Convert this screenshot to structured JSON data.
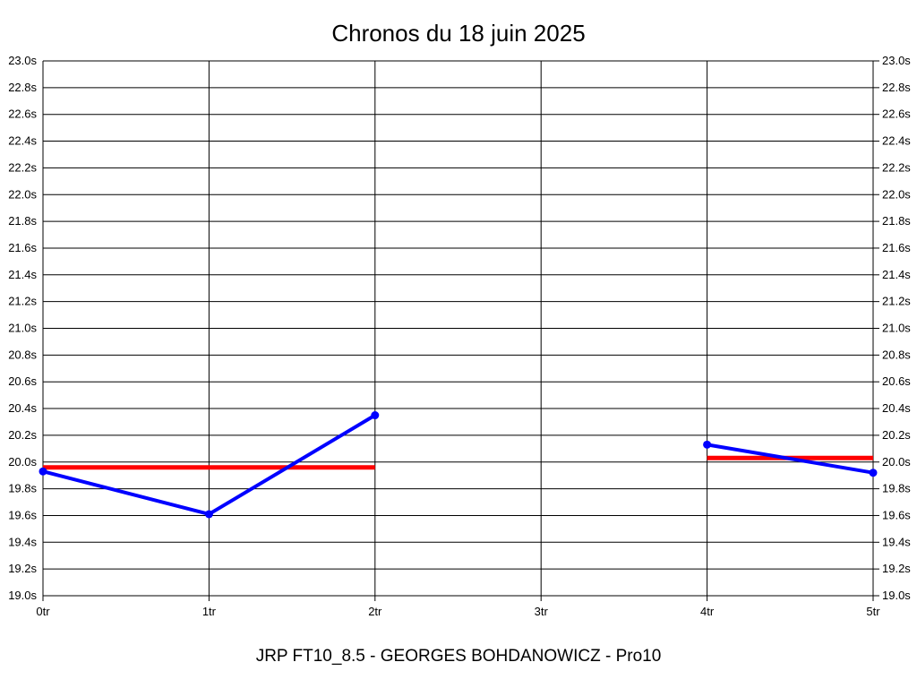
{
  "page": {
    "background": "#ffffff"
  },
  "chart_data": {
    "type": "line",
    "title": "Chronos du 18 juin 2025",
    "subtitle": "JRP FT10_8.5 - GEORGES BOHDANOWICZ - Pro10",
    "xlabel": "",
    "ylabel": "",
    "x_categories": [
      "0tr",
      "1tr",
      "2tr",
      "3tr",
      "4tr",
      "5tr"
    ],
    "ylim": [
      19.0,
      23.0
    ],
    "y_tick_step": 0.2,
    "y_tick_suffix": "s",
    "y_tick_labels": [
      "19.0s",
      "19.2s",
      "19.4s",
      "19.6s",
      "19.8s",
      "20.0s",
      "20.2s",
      "20.4s",
      "20.6s",
      "20.8s",
      "21.0s",
      "21.2s",
      "21.4s",
      "21.6s",
      "21.8s",
      "22.0s",
      "22.2s",
      "22.4s",
      "22.6s",
      "22.8s",
      "23.0s"
    ],
    "grid": true,
    "grid_color": "#000000",
    "axis_color": "#000000",
    "legend_position": "none",
    "series": [
      {
        "name": "chrono-run-1",
        "color": "#0000ff",
        "marker": "circle",
        "x": [
          0,
          1,
          2
        ],
        "values": [
          19.93,
          19.61,
          20.35
        ]
      },
      {
        "name": "chrono-run-2",
        "color": "#0000ff",
        "marker": "circle",
        "x": [
          4,
          5
        ],
        "values": [
          20.13,
          19.92
        ]
      }
    ],
    "average_lines": [
      {
        "name": "moyenne-run-1",
        "color": "#ff0000",
        "value": 19.96,
        "x_from": 0,
        "x_to": 2
      },
      {
        "name": "moyenne-run-2",
        "color": "#ff0000",
        "value": 20.03,
        "x_from": 4,
        "x_to": 5
      }
    ]
  }
}
